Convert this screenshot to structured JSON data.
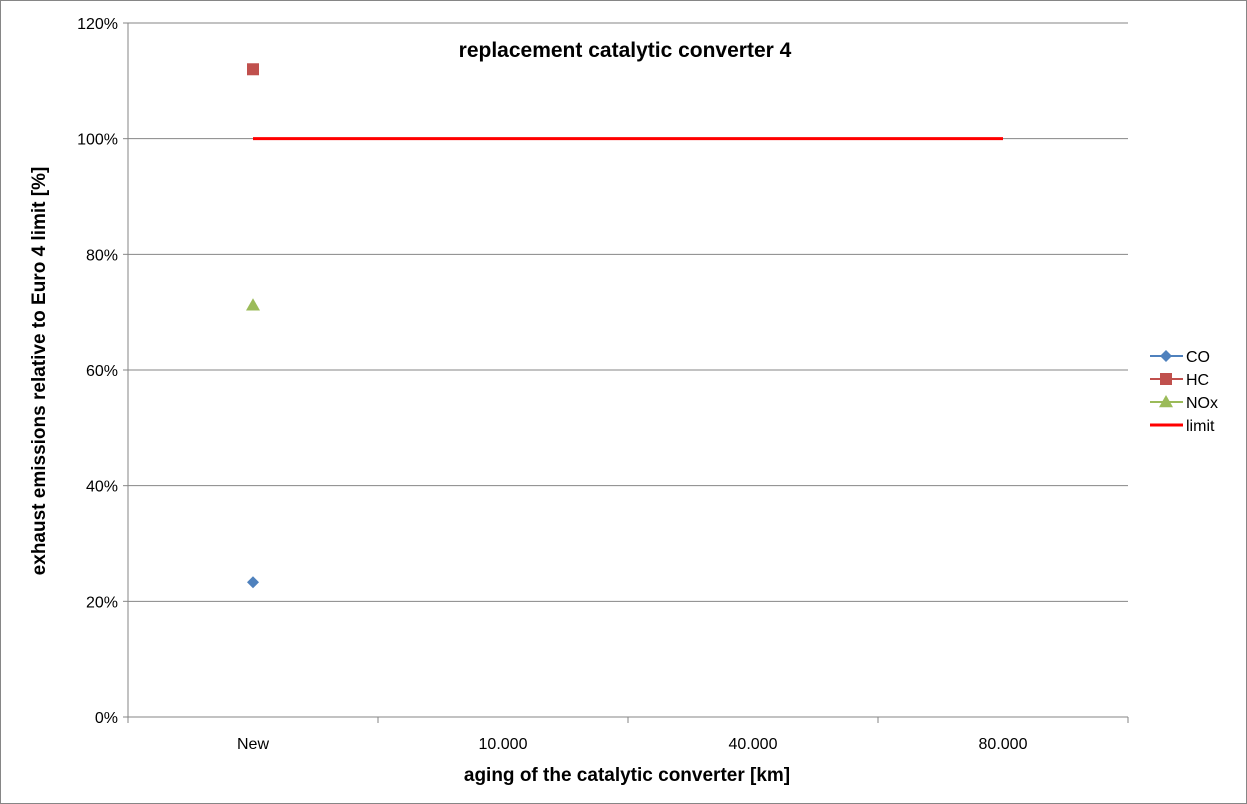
{
  "chart_data": {
    "type": "scatter",
    "title": "replacement catalytic converter 4",
    "xlabel": "aging of the catalytic converter  [km]",
    "ylabel": "exhaust emissions relative to Euro 4 limit [%]",
    "categories": [
      "New",
      "10.000",
      "40.000",
      "80.000"
    ],
    "yticks": [
      "0%",
      "20%",
      "40%",
      "60%",
      "80%",
      "100%",
      "120%"
    ],
    "ylim": [
      0,
      120
    ],
    "grid": "horizontal",
    "legend_position": "right",
    "series": [
      {
        "name": "CO",
        "marker": "diamond",
        "color": "#4F81BD",
        "values": [
          23.3,
          null,
          null,
          null
        ]
      },
      {
        "name": "HC",
        "marker": "square",
        "color": "#C0504D",
        "values": [
          112,
          null,
          null,
          null
        ]
      },
      {
        "name": "NOx",
        "marker": "triangle",
        "color": "#9BBB59",
        "values": [
          71.2,
          null,
          null,
          null
        ]
      },
      {
        "name": "limit",
        "marker": "line",
        "color": "#FF0000",
        "values": [
          100,
          100,
          100,
          100
        ]
      }
    ]
  }
}
